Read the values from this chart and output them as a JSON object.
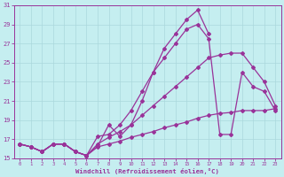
{
  "xlabel": "Windchill (Refroidissement éolien,°C)",
  "xlim": [
    -0.5,
    23.5
  ],
  "ylim": [
    15,
    31
  ],
  "xticks": [
    0,
    1,
    2,
    3,
    4,
    5,
    6,
    7,
    8,
    9,
    10,
    11,
    12,
    13,
    14,
    15,
    16,
    17,
    18,
    19,
    20,
    21,
    22,
    23
  ],
  "yticks": [
    15,
    17,
    19,
    21,
    23,
    25,
    27,
    29,
    31
  ],
  "background_color": "#c5eef0",
  "line_color": "#993399",
  "grid_color": "#aad8dc",
  "lines": [
    {
      "x": [
        0,
        1,
        2,
        3,
        4,
        5,
        6,
        7,
        8,
        9,
        10,
        11,
        12,
        13,
        14,
        15,
        16,
        17
      ],
      "y": [
        16.5,
        16.2,
        15.7,
        16.5,
        16.5,
        15.7,
        15.3,
        16.3,
        18.5,
        17.3,
        18.5,
        21.0,
        24.0,
        26.5,
        28.0,
        29.5,
        30.5,
        28.0
      ]
    },
    {
      "x": [
        0,
        1,
        2,
        3,
        4,
        5,
        6,
        7,
        8,
        9,
        10,
        11,
        12,
        13,
        14,
        15,
        16,
        17,
        18,
        19,
        20,
        21,
        22,
        23
      ],
      "y": [
        16.5,
        16.2,
        15.7,
        16.5,
        16.5,
        15.7,
        15.3,
        16.5,
        17.2,
        17.8,
        18.5,
        19.5,
        20.5,
        21.5,
        22.5,
        23.5,
        24.5,
        25.5,
        25.8,
        26.0,
        26.0,
        24.5,
        23.0,
        20.5
      ]
    },
    {
      "x": [
        0,
        1,
        2,
        3,
        4,
        5,
        6,
        7,
        8,
        9,
        10,
        11,
        12,
        13,
        14,
        15,
        16,
        17,
        18,
        19,
        20,
        21,
        22,
        23
      ],
      "y": [
        16.5,
        16.2,
        15.7,
        16.5,
        16.5,
        15.7,
        15.3,
        17.3,
        17.5,
        18.5,
        20.0,
        22.0,
        24.0,
        25.5,
        27.0,
        28.5,
        29.0,
        27.5,
        17.5,
        17.5,
        24.0,
        22.5,
        22.0,
        20.0
      ]
    },
    {
      "x": [
        0,
        1,
        2,
        3,
        4,
        5,
        6,
        7,
        8,
        9,
        10,
        11,
        12,
        13,
        14,
        15,
        16,
        17,
        18,
        19,
        20,
        21,
        22,
        23
      ],
      "y": [
        16.5,
        16.2,
        15.7,
        16.5,
        16.5,
        15.7,
        15.3,
        16.2,
        16.5,
        16.8,
        17.2,
        17.5,
        17.8,
        18.2,
        18.5,
        18.8,
        19.2,
        19.5,
        19.7,
        19.8,
        20.0,
        20.0,
        20.0,
        20.2
      ]
    }
  ]
}
